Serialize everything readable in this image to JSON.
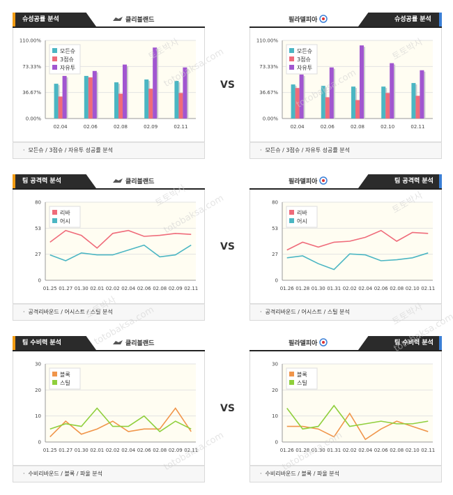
{
  "panels": [
    {
      "side": "left",
      "section_label": "슈성공률 분석",
      "team": "클리블랜드",
      "caption": "모든슈 / 3점슈 / 자유투 성공률 분석",
      "chart_data": {
        "type": "bar",
        "categories": [
          "02.04",
          "02.06",
          "02.08",
          "02.09",
          "02.11"
        ],
        "y_ticks": [
          "110.00%",
          "73.33%",
          "36.67%",
          "0.00%"
        ],
        "ylim": [
          0,
          110
        ],
        "legend": [
          "모든슈",
          "3점슈",
          "자유투"
        ],
        "colors": [
          "#4bb6c3",
          "#ef6b7a",
          "#a156d0"
        ],
        "series": [
          {
            "name": "모든슈",
            "values": [
              49,
              60,
              51,
              55,
              53
            ]
          },
          {
            "name": "3점슈",
            "values": [
              31,
              58,
              35,
              42,
              36
            ]
          },
          {
            "name": "자유투",
            "values": [
              60,
              67,
              76,
              100,
              72
            ]
          }
        ]
      }
    },
    {
      "side": "right",
      "section_label": "슈성공률 분석",
      "team": "필라델피아",
      "caption": "모든슈 / 3점슈 / 자유투 성공률 분석",
      "chart_data": {
        "type": "bar",
        "categories": [
          "02.04",
          "02.06",
          "02.08",
          "02.10",
          "02.11"
        ],
        "y_ticks": [
          "110.00%",
          "73.33%",
          "36.67%",
          "0.00%"
        ],
        "ylim": [
          0,
          110
        ],
        "legend": [
          "모든슈",
          "3점슈",
          "자유투"
        ],
        "colors": [
          "#4bb6c3",
          "#ef6b7a",
          "#a156d0"
        ],
        "series": [
          {
            "name": "모든슈",
            "values": [
              48,
              46,
              45,
              45,
              50
            ]
          },
          {
            "name": "3점슈",
            "values": [
              43,
              30,
              26,
              36,
              32
            ]
          },
          {
            "name": "자유투",
            "values": [
              62,
              72,
              103,
              78,
              68
            ]
          }
        ]
      }
    },
    {
      "side": "left",
      "section_label": "팀 공격력 분석",
      "team": "클리블랜드",
      "caption": "공격리바운드 / 어시스트 / 스틸 분석",
      "chart_data": {
        "type": "line",
        "categories": [
          "01.25",
          "01.27",
          "01.30",
          "02.01",
          "02.02",
          "02.04",
          "02.06",
          "02.08",
          "02.09",
          "02.11"
        ],
        "y_ticks": [
          "80",
          "53",
          "27",
          "0"
        ],
        "ylim": [
          0,
          80
        ],
        "legend": [
          "리바",
          "어시"
        ],
        "colors": [
          "#ef6b7a",
          "#4bb6c3"
        ],
        "series": [
          {
            "name": "리바",
            "values": [
              39,
              51,
              46,
              33,
              48,
              51,
              45,
              46,
              48,
              47
            ]
          },
          {
            "name": "어시",
            "values": [
              26,
              20,
              28,
              26,
              26,
              31,
              36,
              24,
              26,
              36
            ]
          }
        ]
      }
    },
    {
      "side": "right",
      "section_label": "팀 공격력 분석",
      "team": "필라델피아",
      "caption": "공격리바운드 / 어시스트 / 스틸 분석",
      "chart_data": {
        "type": "line",
        "categories": [
          "01.26",
          "01.28",
          "01.30",
          "01.31",
          "02.02",
          "02.04",
          "02.06",
          "02.08",
          "02.10",
          "02.11"
        ],
        "y_ticks": [
          "80",
          "53",
          "27",
          "0"
        ],
        "ylim": [
          0,
          80
        ],
        "legend": [
          "리바",
          "어시"
        ],
        "colors": [
          "#ef6b7a",
          "#4bb6c3"
        ],
        "series": [
          {
            "name": "리바",
            "values": [
              31,
              39,
              34,
              39,
              40,
              44,
              51,
              40,
              49,
              48
            ]
          },
          {
            "name": "어시",
            "values": [
              23,
              25,
              17,
              11,
              27,
              26,
              20,
              21,
              23,
              28
            ]
          }
        ]
      }
    },
    {
      "side": "left",
      "section_label": "팀 수비력 분석",
      "team": "클리블랜드",
      "caption": "수비리바운드 / 블록 / 파울 분석",
      "chart_data": {
        "type": "line",
        "categories": [
          "01.25",
          "01.27",
          "01.30",
          "02.01",
          "02.02",
          "02.04",
          "02.06",
          "02.08",
          "02.09",
          "02.11"
        ],
        "y_ticks": [
          "30",
          "20",
          "10",
          "0"
        ],
        "ylim": [
          0,
          30
        ],
        "legend": [
          "블록",
          "스틸"
        ],
        "colors": [
          "#f0954a",
          "#8fcf3c"
        ],
        "series": [
          {
            "name": "블록",
            "values": [
              2,
              8,
              3,
              5,
              8,
              4,
              5,
              5,
              13,
              4
            ]
          },
          {
            "name": "스틸",
            "values": [
              5,
              7,
              6,
              13,
              6,
              6,
              10,
              4,
              8,
              5
            ]
          }
        ]
      }
    },
    {
      "side": "right",
      "section_label": "팀 수비력 분석",
      "team": "필라델피아",
      "caption": "수비리바운드 / 블록 / 파울 분석",
      "chart_data": {
        "type": "line",
        "categories": [
          "01.26",
          "01.28",
          "01.30",
          "01.31",
          "02.02",
          "02.04",
          "02.06",
          "02.08",
          "02.10",
          "02.11"
        ],
        "y_ticks": [
          "30",
          "20",
          "10",
          "0"
        ],
        "ylim": [
          0,
          30
        ],
        "legend": [
          "블록",
          "스틸"
        ],
        "colors": [
          "#f0954a",
          "#8fcf3c"
        ],
        "series": [
          {
            "name": "블록",
            "values": [
              6,
              6,
              5,
              2,
              11,
              1,
              5,
              8,
              6,
              4
            ]
          },
          {
            "name": "스틸",
            "values": [
              13,
              5,
              6,
              14,
              6,
              7,
              8,
              7,
              7,
              8
            ]
          }
        ]
      }
    }
  ],
  "vs_label": "VS",
  "watermarks": [
    "토토박사",
    "totobaksa.com"
  ]
}
